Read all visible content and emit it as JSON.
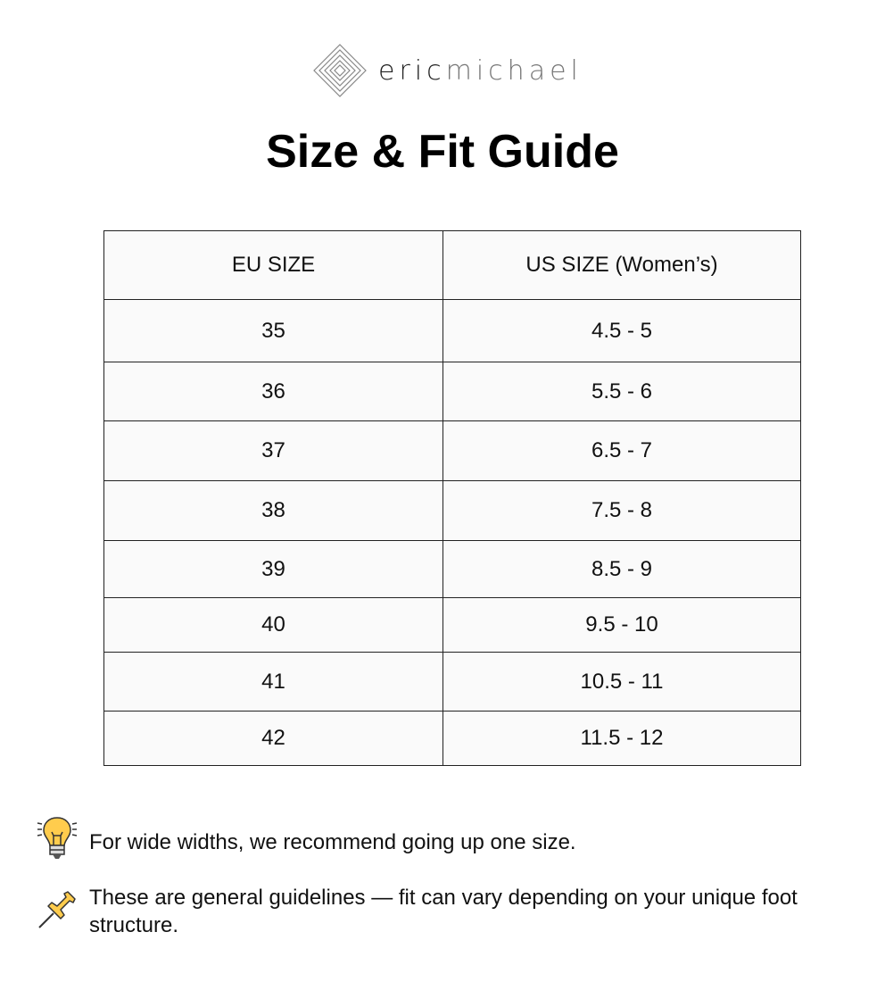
{
  "brand": {
    "part1": "eric",
    "part2": "michael"
  },
  "title": "Size & Fit Guide",
  "table": {
    "headers": [
      "EU SIZE",
      "US SIZE (Women’s)"
    ],
    "rows": [
      [
        "35",
        "4.5 - 5"
      ],
      [
        "36",
        "5.5 - 6"
      ],
      [
        "37",
        "6.5 - 7"
      ],
      [
        "38",
        "7.5 - 8"
      ],
      [
        "39",
        "8.5 - 9"
      ],
      [
        "40",
        "9.5 - 10"
      ],
      [
        "41",
        "10.5 - 11"
      ],
      [
        "42",
        "11.5 - 12"
      ]
    ]
  },
  "notes": [
    {
      "icon": "lightbulb-icon",
      "text": "For wide widths, we recommend going up one size."
    },
    {
      "icon": "pushpin-icon",
      "text": "These are general guidelines — fit can vary depending on your unique foot structure."
    }
  ]
}
